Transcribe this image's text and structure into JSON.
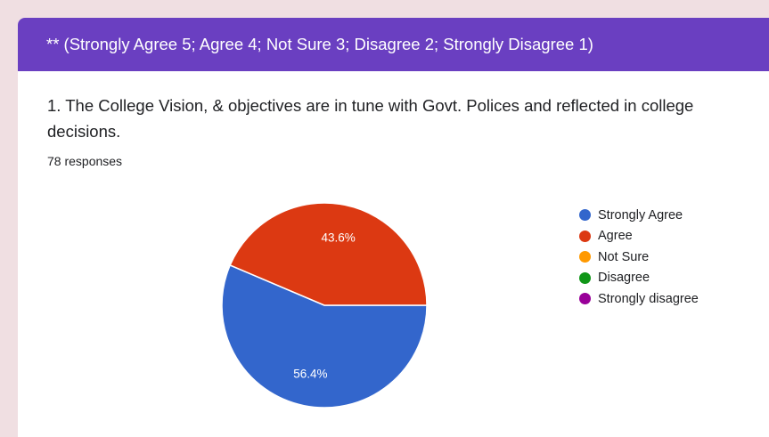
{
  "header": {
    "text": "** (Strongly Agree 5; Agree 4; Not Sure 3; Disagree 2; Strongly Disagree 1)"
  },
  "question": {
    "text": "1. The College Vision,  & objectives are in tune with Govt. Polices and reflected in college decisions."
  },
  "responses": {
    "text": "78 responses"
  },
  "colors": {
    "header_bg": "#6a3fc1",
    "background": "#f0dfe2"
  },
  "chart_data": {
    "type": "pie",
    "title": "",
    "categories": [
      "Strongly Agree",
      "Agree",
      "Not Sure",
      "Disagree",
      "Strongly disagree"
    ],
    "values": [
      56.4,
      43.6,
      0,
      0,
      0
    ],
    "value_labels": [
      "56.4%",
      "43.6%",
      "",
      "",
      ""
    ],
    "colors": [
      "#3366cc",
      "#dc3912",
      "#ff9900",
      "#109618",
      "#990099"
    ],
    "legend_position": "right"
  }
}
